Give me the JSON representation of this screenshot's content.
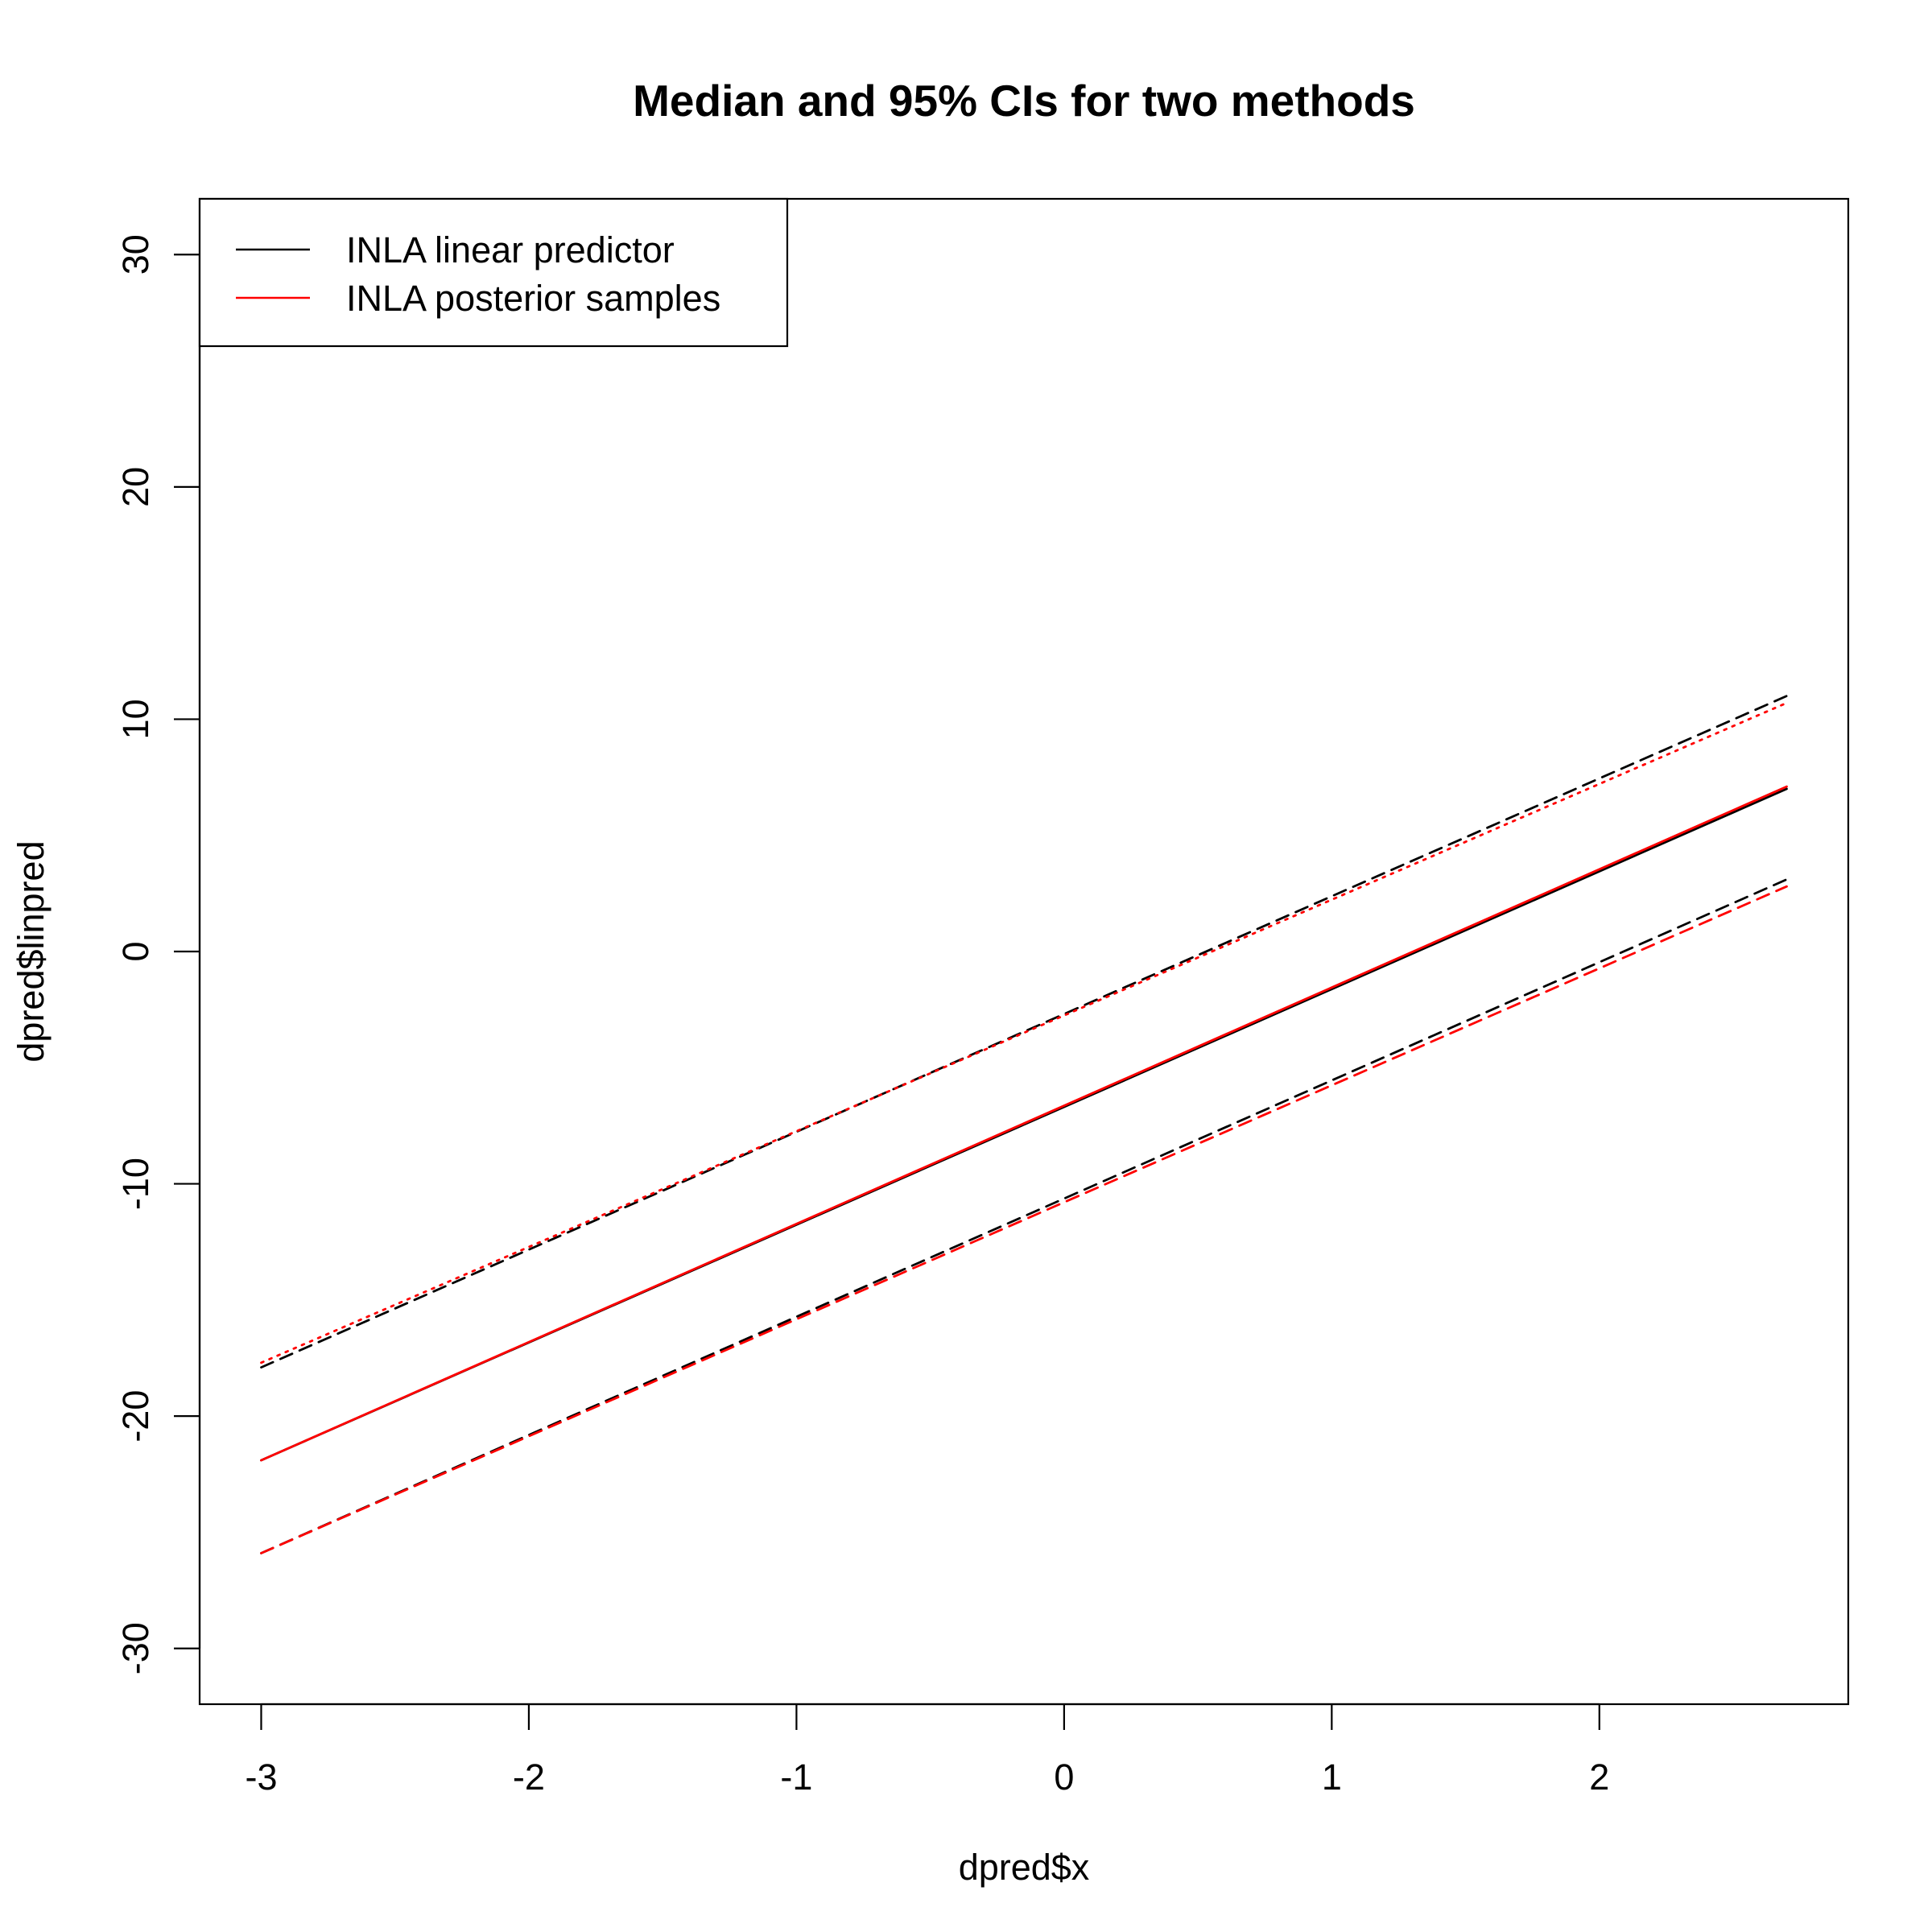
{
  "chart_data": {
    "type": "line",
    "title": "Median and 95% CIs for two methods",
    "xlabel": "dpred$x",
    "ylabel": "dpred$linpred",
    "xlim": [
      -3.23,
      2.93
    ],
    "ylim": [
      -32.4,
      32.4
    ],
    "xticks": [
      -3,
      -2,
      -1,
      0,
      1,
      2
    ],
    "xtick_labels": [
      "-3",
      "-2",
      "-1",
      "0",
      "1",
      "2"
    ],
    "yticks": [
      -30,
      -20,
      -10,
      0,
      10,
      20,
      30
    ],
    "ytick_labels": [
      "-30",
      "-20",
      "-10",
      "0",
      "10",
      "20",
      "30"
    ],
    "grid": false,
    "legend": {
      "position": "top-left",
      "entries": [
        {
          "label": "INLA linear predictor",
          "color": "#000000"
        },
        {
          "label": "INLA posterior samples",
          "color": "#ff0000"
        }
      ]
    },
    "series": [
      {
        "group": "INLA linear predictor",
        "role": "median",
        "color": "#000000",
        "style": "solid",
        "x": [
          -3.0,
          2.7
        ],
        "y": [
          -21.9,
          7.0
        ]
      },
      {
        "group": "INLA linear predictor",
        "role": "upper 95% CI",
        "color": "#000000",
        "style": "dashed",
        "x": [
          -3.0,
          2.7
        ],
        "y": [
          -17.9,
          11.0
        ]
      },
      {
        "group": "INLA linear predictor",
        "role": "lower 95% CI",
        "color": "#000000",
        "style": "dashed",
        "x": [
          -3.0,
          2.7
        ],
        "y": [
          -25.9,
          3.1
        ]
      },
      {
        "group": "INLA posterior samples",
        "role": "median",
        "color": "#ff0000",
        "style": "solid",
        "x": [
          -3.0,
          2.7
        ],
        "y": [
          -21.9,
          7.1
        ]
      },
      {
        "group": "INLA posterior samples",
        "role": "upper 95% CI",
        "color": "#ff0000",
        "style": "dotted",
        "x": [
          -3.0,
          2.7
        ],
        "y": [
          -17.7,
          10.7
        ]
      },
      {
        "group": "INLA posterior samples",
        "role": "lower 95% CI",
        "color": "#ff0000",
        "style": "dashed",
        "x": [
          -3.0,
          2.7
        ],
        "y": [
          -25.9,
          2.8
        ]
      }
    ]
  }
}
